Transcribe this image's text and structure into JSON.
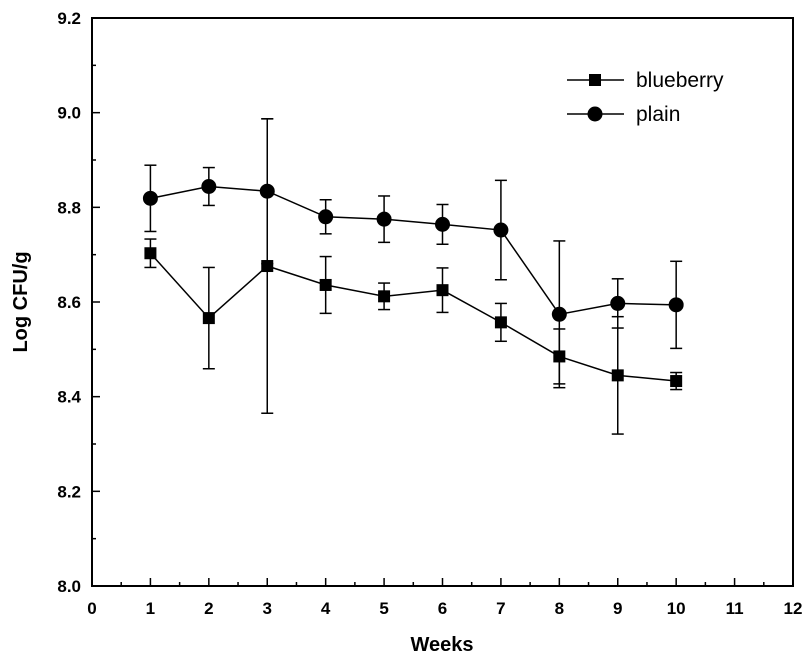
{
  "chart_data": {
    "type": "line",
    "title": "",
    "xlabel": "Weeks",
    "ylabel": "Log CFU/g",
    "xlim": [
      0,
      12
    ],
    "ylim": [
      8.0,
      9.2
    ],
    "x_ticks": [
      "0",
      "1",
      "2",
      "3",
      "4",
      "5",
      "6",
      "7",
      "8",
      "9",
      "10",
      "11",
      "12"
    ],
    "y_ticks": [
      "8.0",
      "8.2",
      "8.4",
      "8.6",
      "8.8",
      "9.0",
      "9.2"
    ],
    "grid": false,
    "legend_position": "top-right",
    "x": [
      1,
      2,
      3,
      4,
      5,
      6,
      7,
      8,
      9,
      10
    ],
    "series": [
      {
        "name": "blueberry",
        "marker": "square",
        "color": "#000000",
        "values": [
          8.703,
          8.566,
          8.676,
          8.636,
          8.612,
          8.625,
          8.557,
          8.485,
          8.445,
          8.433
        ],
        "error": [
          0.03,
          0.107,
          0.311,
          0.06,
          0.028,
          0.047,
          0.04,
          0.058,
          0.124,
          0.018
        ]
      },
      {
        "name": "plain",
        "marker": "circle",
        "color": "#000000",
        "values": [
          8.819,
          8.844,
          8.834,
          8.78,
          8.775,
          8.764,
          8.752,
          8.574,
          8.597,
          8.594
        ],
        "error": [
          0.07,
          0.04,
          0.153,
          0.036,
          0.049,
          0.042,
          0.105,
          0.155,
          0.052,
          0.092
        ]
      }
    ]
  }
}
